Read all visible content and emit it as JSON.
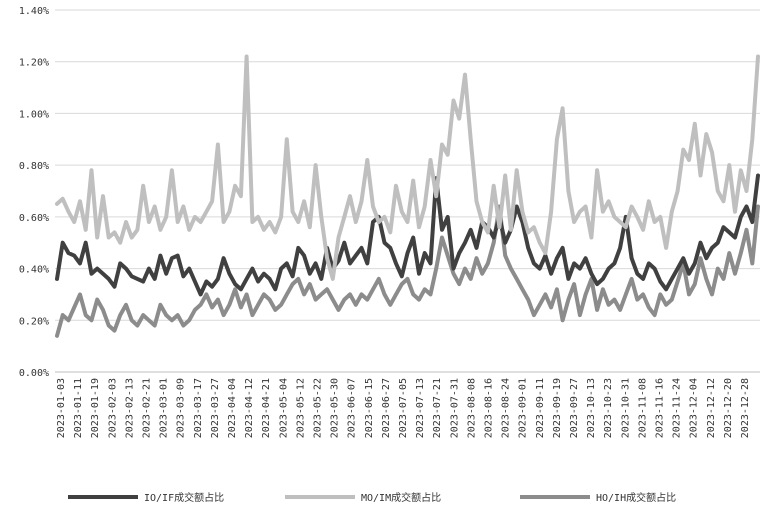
{
  "chart_data": {
    "type": "line",
    "title": "",
    "xlabel": "",
    "ylabel": "",
    "ylim": [
      0,
      1.4
    ],
    "y_ticks": [
      "0.00%",
      "0.20%",
      "0.40%",
      "0.60%",
      "0.80%",
      "1.00%",
      "1.20%",
      "1.40%"
    ],
    "x_ticks": [
      "2023-01-03",
      "2023-01-11",
      "2023-01-19",
      "2023-02-03",
      "2023-02-13",
      "2023-02-21",
      "2023-03-01",
      "2023-03-09",
      "2023-03-17",
      "2023-03-27",
      "2023-04-04",
      "2023-04-12",
      "2023-04-21",
      "2023-05-04",
      "2023-05-12",
      "2023-05-22",
      "2023-05-30",
      "2023-06-07",
      "2023-06-15",
      "2023-06-27",
      "2023-07-05",
      "2023-07-13",
      "2023-07-21",
      "2023-07-31",
      "2023-08-08",
      "2023-08-16",
      "2023-08-24",
      "2023-09-01",
      "2023-09-11",
      "2023-09-19",
      "2023-09-27",
      "2023-10-13",
      "2023-10-23",
      "2023-10-31",
      "2023-11-08",
      "2023-11-16",
      "2023-11-24",
      "2023-12-04",
      "2023-12-12",
      "2023-12-20",
      "2023-12-28"
    ],
    "grid": "horizontal",
    "legend_position": "bottom",
    "series": [
      {
        "name": "IO/IF成交额占比",
        "color": "#404040",
        "values": [
          0.36,
          0.5,
          0.46,
          0.45,
          0.42,
          0.5,
          0.38,
          0.4,
          0.38,
          0.36,
          0.33,
          0.42,
          0.4,
          0.37,
          0.36,
          0.35,
          0.4,
          0.36,
          0.45,
          0.38,
          0.44,
          0.45,
          0.37,
          0.4,
          0.35,
          0.3,
          0.35,
          0.33,
          0.36,
          0.44,
          0.38,
          0.34,
          0.32,
          0.36,
          0.4,
          0.35,
          0.38,
          0.36,
          0.32,
          0.4,
          0.42,
          0.37,
          0.48,
          0.45,
          0.38,
          0.42,
          0.36,
          0.48,
          0.4,
          0.43,
          0.5,
          0.42,
          0.45,
          0.48,
          0.42,
          0.58,
          0.6,
          0.5,
          0.48,
          0.42,
          0.37,
          0.46,
          0.52,
          0.38,
          0.46,
          0.42,
          0.75,
          0.55,
          0.6,
          0.4,
          0.46,
          0.5,
          0.55,
          0.48,
          0.58,
          0.56,
          0.52,
          0.6,
          0.5,
          0.55,
          0.64,
          0.58,
          0.48,
          0.42,
          0.4,
          0.45,
          0.38,
          0.44,
          0.48,
          0.36,
          0.42,
          0.4,
          0.44,
          0.38,
          0.34,
          0.36,
          0.4,
          0.42,
          0.48,
          0.6,
          0.44,
          0.38,
          0.36,
          0.42,
          0.4,
          0.35,
          0.32,
          0.36,
          0.4,
          0.44,
          0.38,
          0.42,
          0.5,
          0.44,
          0.48,
          0.5,
          0.56,
          0.54,
          0.52,
          0.6,
          0.64,
          0.58,
          0.76
        ]
      },
      {
        "name": "MO/IM成交额占比",
        "color": "#bfbfbf",
        "values": [
          0.65,
          0.67,
          0.62,
          0.58,
          0.66,
          0.55,
          0.78,
          0.52,
          0.68,
          0.52,
          0.54,
          0.5,
          0.58,
          0.52,
          0.55,
          0.72,
          0.58,
          0.64,
          0.55,
          0.6,
          0.78,
          0.58,
          0.64,
          0.55,
          0.6,
          0.58,
          0.62,
          0.66,
          0.88,
          0.58,
          0.62,
          0.72,
          0.68,
          1.22,
          0.58,
          0.6,
          0.55,
          0.58,
          0.54,
          0.6,
          0.9,
          0.62,
          0.58,
          0.66,
          0.56,
          0.8,
          0.6,
          0.44,
          0.36,
          0.52,
          0.6,
          0.68,
          0.58,
          0.66,
          0.82,
          0.64,
          0.58,
          0.6,
          0.54,
          0.72,
          0.62,
          0.58,
          0.74,
          0.56,
          0.64,
          0.82,
          0.68,
          0.88,
          0.84,
          1.05,
          0.98,
          1.15,
          0.9,
          0.66,
          0.58,
          0.54,
          0.72,
          0.56,
          0.76,
          0.55,
          0.78,
          0.62,
          0.54,
          0.56,
          0.5,
          0.46,
          0.62,
          0.9,
          1.02,
          0.7,
          0.58,
          0.62,
          0.64,
          0.52,
          0.78,
          0.62,
          0.66,
          0.6,
          0.58,
          0.56,
          0.64,
          0.6,
          0.55,
          0.66,
          0.58,
          0.6,
          0.48,
          0.62,
          0.7,
          0.86,
          0.82,
          0.96,
          0.76,
          0.92,
          0.85,
          0.7,
          0.66,
          0.8,
          0.62,
          0.78,
          0.7,
          0.9,
          1.22
        ]
      },
      {
        "name": "HO/IH成交额占比",
        "color": "#8c8c8c",
        "values": [
          0.14,
          0.22,
          0.2,
          0.25,
          0.3,
          0.22,
          0.2,
          0.28,
          0.24,
          0.18,
          0.16,
          0.22,
          0.26,
          0.2,
          0.18,
          0.22,
          0.2,
          0.18,
          0.26,
          0.22,
          0.2,
          0.22,
          0.18,
          0.2,
          0.24,
          0.26,
          0.3,
          0.25,
          0.28,
          0.22,
          0.26,
          0.32,
          0.25,
          0.3,
          0.22,
          0.26,
          0.3,
          0.28,
          0.24,
          0.26,
          0.3,
          0.34,
          0.36,
          0.3,
          0.34,
          0.28,
          0.3,
          0.32,
          0.28,
          0.24,
          0.28,
          0.3,
          0.26,
          0.3,
          0.28,
          0.32,
          0.36,
          0.3,
          0.26,
          0.3,
          0.34,
          0.36,
          0.3,
          0.28,
          0.32,
          0.3,
          0.4,
          0.52,
          0.45,
          0.38,
          0.34,
          0.4,
          0.36,
          0.44,
          0.38,
          0.42,
          0.5,
          0.64,
          0.45,
          0.4,
          0.36,
          0.32,
          0.28,
          0.22,
          0.26,
          0.3,
          0.25,
          0.32,
          0.2,
          0.28,
          0.34,
          0.22,
          0.3,
          0.36,
          0.24,
          0.32,
          0.26,
          0.28,
          0.24,
          0.3,
          0.36,
          0.28,
          0.3,
          0.25,
          0.22,
          0.3,
          0.26,
          0.28,
          0.35,
          0.42,
          0.3,
          0.34,
          0.44,
          0.36,
          0.3,
          0.4,
          0.36,
          0.46,
          0.38,
          0.46,
          0.55,
          0.42,
          0.64
        ]
      }
    ]
  }
}
